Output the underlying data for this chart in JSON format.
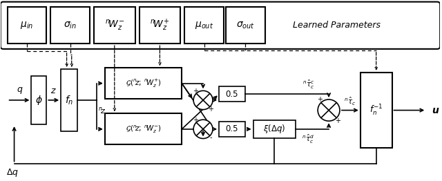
{
  "fig_width": 6.4,
  "fig_height": 2.62,
  "dpi": 100,
  "bg_color": "#ffffff",
  "learned_params_label": "Learned Parameters"
}
